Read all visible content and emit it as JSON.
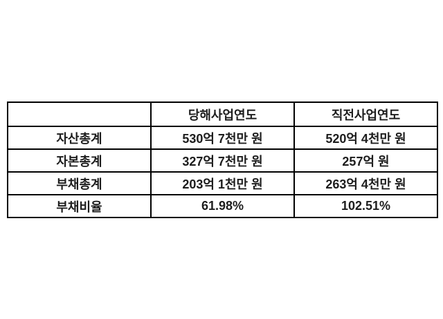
{
  "chart_data": {
    "type": "table",
    "columns": [
      "",
      "당해사업연도",
      "직전사업연도"
    ],
    "rows": [
      [
        "자산총계",
        "530억 7천만 원",
        "520억 4천만 원"
      ],
      [
        "자본총계",
        "327억 7천만 원",
        "257억 원"
      ],
      [
        "부채총계",
        "203억 1천만 원",
        "263억 4천만 원"
      ],
      [
        "부채비율",
        "61.98%",
        "102.51%"
      ]
    ],
    "layout": {
      "border_color": "#000000",
      "text_color": "#1d1d1d",
      "background": "#ffffff",
      "grid": "on",
      "column_count": 3,
      "row_count": 5
    }
  }
}
